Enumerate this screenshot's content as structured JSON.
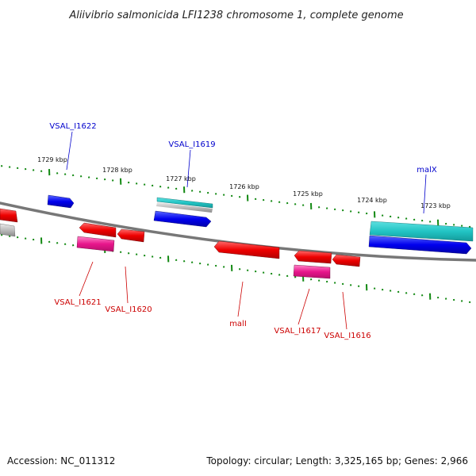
{
  "title": "Aliivibrio salmonicida LFI1238 chromosome 1, complete genome",
  "footer": {
    "accession": "Accession: NC_011312",
    "summary": "Topology: circular; Length: 3,325,165 bp; Genes: 2,966"
  },
  "ticks": [
    "1729 kbp",
    "1728 kbp",
    "1727 kbp",
    "1726 kbp",
    "1725 kbp",
    "1724 kbp",
    "1723 kbp"
  ],
  "genes": {
    "top": [
      "VSAL_I1622",
      "VSAL_I1619",
      "malX"
    ],
    "bottom": [
      "VSAL_I1621",
      "VSAL_I1620",
      "malI",
      "VSAL_I1617",
      "VSAL_I1616"
    ]
  },
  "colors": {
    "forward_cds": "#0000ee",
    "reverse_cds": "#ee0000",
    "pink_feature": "#e8168c",
    "teal_feature": "#22c4c4",
    "gray_feature": "#b8b8b8",
    "backbone": "#777777",
    "tick": "#118811",
    "forward_label": "#0000cc",
    "reverse_label": "#cc0000"
  }
}
